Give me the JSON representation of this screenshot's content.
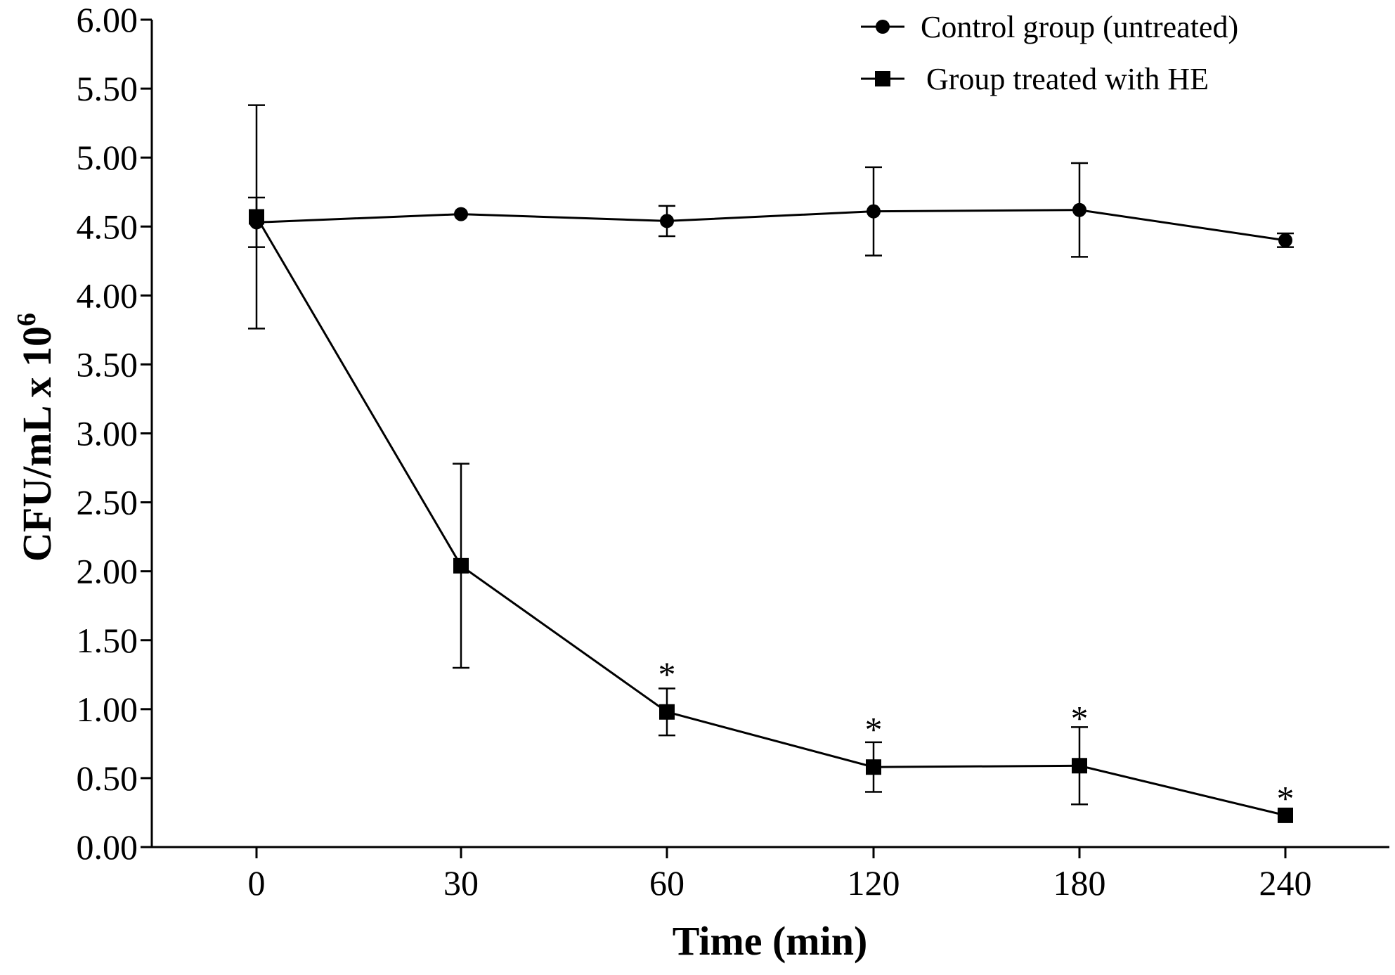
{
  "chart_data": {
    "type": "line",
    "title": "",
    "xlabel": "Time (min)",
    "ylabel": {
      "main": "CFU/mL x 10",
      "exponent": "6"
    },
    "categories": [
      "0",
      "30",
      "60",
      "120",
      "180",
      "240"
    ],
    "ylim": [
      0,
      6
    ],
    "yticks": [
      "0.00",
      "0.50",
      "1.00",
      "1.50",
      "2.00",
      "2.50",
      "3.00",
      "3.50",
      "4.00",
      "4.50",
      "5.00",
      "5.50",
      "6.00"
    ],
    "grid": false,
    "legend_position": "top-right",
    "series": [
      {
        "name": "Control group (untreated)",
        "marker": "circle",
        "color": "#000000",
        "values": [
          4.53,
          4.59,
          4.54,
          4.61,
          4.62,
          4.4
        ],
        "error": [
          0.18,
          0.0,
          0.11,
          0.32,
          0.34,
          0.05
        ]
      },
      {
        "name": "Group treated with HE",
        "marker": "square",
        "color": "#000000",
        "values": [
          4.57,
          2.04,
          0.98,
          0.58,
          0.59,
          0.23
        ],
        "error": [
          0.81,
          0.74,
          0.17,
          0.18,
          0.28,
          0.0
        ]
      }
    ],
    "annotations": [
      {
        "category_index": 2,
        "text": "*",
        "y": 1.28
      },
      {
        "category_index": 3,
        "text": "*",
        "y": 0.88
      },
      {
        "category_index": 4,
        "text": "*",
        "y": 0.96
      },
      {
        "category_index": 5,
        "text": "*",
        "y": 0.38
      }
    ]
  }
}
